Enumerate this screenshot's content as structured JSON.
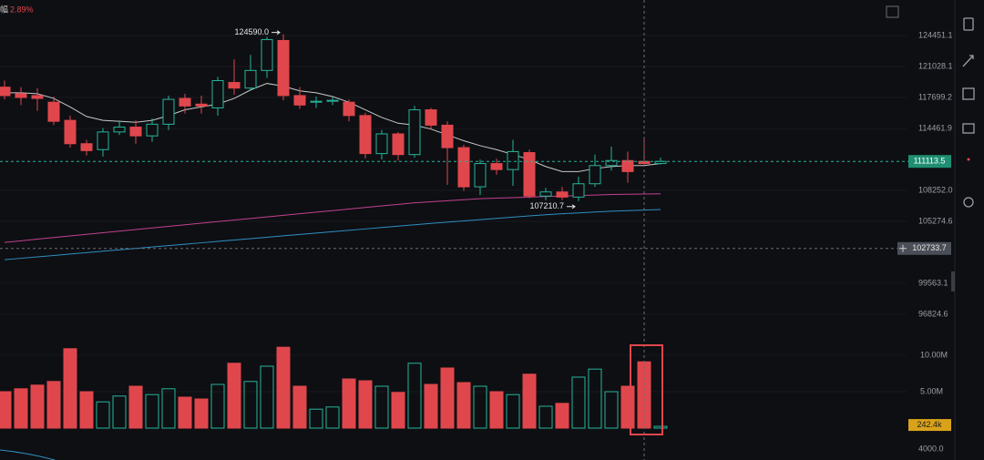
{
  "chart_data": {
    "type": "candlestick",
    "top_label": "幅",
    "change": "2.89%",
    "open": [
      118800,
      118100,
      117900,
      117200,
      115300,
      112900,
      112300,
      114100,
      114600,
      113700,
      114900,
      117600,
      117000,
      116600,
      119300,
      118700,
      120600,
      123900,
      117900,
      117200,
      117300,
      117200,
      115800,
      111900,
      113900,
      111800,
      116400,
      114800,
      112500,
      108600,
      110900,
      110300,
      112000,
      107700,
      108100,
      107600,
      108900,
      110700,
      111200,
      111113,
      110900
    ],
    "high": [
      119500,
      118800,
      118700,
      117800,
      115800,
      113300,
      114500,
      115300,
      115300,
      115500,
      117900,
      118100,
      117900,
      119900,
      121800,
      122300,
      124300,
      124590,
      118800,
      117800,
      117800,
      117500,
      116100,
      114300,
      114100,
      116800,
      116600,
      115200,
      112800,
      111300,
      111400,
      113300,
      112300,
      108500,
      108600,
      109600,
      111800,
      112600,
      112100,
      113500,
      111500
    ],
    "low": [
      117500,
      116900,
      116300,
      114800,
      112500,
      111700,
      111600,
      113800,
      112900,
      113100,
      114300,
      116000,
      116000,
      115800,
      118000,
      118400,
      119800,
      117400,
      116500,
      116600,
      116900,
      115200,
      111400,
      111300,
      111200,
      111500,
      114400,
      108800,
      108200,
      107800,
      109800,
      108700,
      107500,
      107300,
      107300,
      107210.7,
      108600,
      110200,
      109000,
      110600,
      110800
    ],
    "close": [
      117900,
      117700,
      117600,
      115200,
      112900,
      112200,
      114100,
      114600,
      113700,
      114900,
      117500,
      116800,
      116800,
      119500,
      118700,
      120600,
      124000,
      117900,
      116900,
      117300,
      117400,
      115800,
      111900,
      113900,
      111800,
      116400,
      114800,
      112500,
      108600,
      110900,
      110300,
      112100,
      107700,
      108100,
      107600,
      108900,
      110700,
      111200,
      110100,
      110900,
      111113.5
    ],
    "volume": [
      5000000,
      5400000,
      5900000,
      6400000,
      10900000,
      5000000,
      3600000,
      4400000,
      5750000,
      4600000,
      5400000,
      4250000,
      4000000,
      6000000,
      8900000,
      6400000,
      8500000,
      11100000,
      5750000,
      2600000,
      2900000,
      6750000,
      6500000,
      5750000,
      4900000,
      8900000,
      6000000,
      8250000,
      6250000,
      5750000,
      5000000,
      4600000,
      7400000,
      3000000,
      3400000,
      7000000,
      8100000,
      5000000,
      5750000,
      9100000,
      242400
    ],
    "volume_labels": [
      null,
      null,
      null,
      null,
      null,
      null,
      null,
      null,
      null,
      null,
      null,
      null,
      null,
      null,
      null,
      null,
      null,
      null,
      null,
      null,
      null,
      null,
      null,
      null,
      null,
      null,
      null,
      null,
      null,
      null,
      null,
      null,
      null,
      null,
      null,
      null,
      null,
      null,
      null,
      null,
      "242.4k"
    ],
    "moving_averages": [
      {
        "color": "#c8c8c8",
        "values": [
          118200,
          118200,
          118100,
          117600,
          116700,
          115700,
          115300,
          115200,
          115100,
          115300,
          115800,
          116400,
          116700,
          117000,
          117600,
          118500,
          119200,
          118900,
          118400,
          118200,
          117800,
          117200,
          116400,
          115600,
          115000,
          114800,
          114400,
          113800,
          113200,
          112700,
          112300,
          111800,
          111300,
          110600,
          110100,
          110100,
          110400,
          110600,
          110700,
          110700,
          110900
        ]
      },
      {
        "color": "#c2418f",
        "values": [
          103300,
          103450,
          103600,
          103750,
          103900,
          104050,
          104200,
          104350,
          104500,
          104650,
          104800,
          104950,
          105100,
          105250,
          105400,
          105550,
          105700,
          105850,
          106000,
          106150,
          106300,
          106450,
          106600,
          106750,
          106900,
          107050,
          107150,
          107250,
          107350,
          107450,
          107500,
          107550,
          107600,
          107650,
          107700,
          107750,
          107800,
          107850,
          107880,
          107900,
          107920
        ]
      },
      {
        "color": "#2f8fc2",
        "values": [
          101700,
          101830,
          101960,
          102090,
          102220,
          102350,
          102480,
          102610,
          102740,
          102870,
          103000,
          103130,
          103260,
          103390,
          103520,
          103650,
          103780,
          103910,
          104040,
          104170,
          104300,
          104430,
          104560,
          104690,
          104820,
          104950,
          105080,
          105200,
          105320,
          105440,
          105560,
          105680,
          105800,
          105900,
          106000,
          106080,
          106160,
          106240,
          106300,
          106350,
          106400
        ]
      }
    ],
    "ylim": [
      95641,
      127973
    ],
    "log_scale": true,
    "yticks": [
      124451.1,
      121028.1,
      117699.2,
      114461.9,
      {
        "value": 108252,
        "label": "108252.0"
      },
      105274.6,
      99563.1,
      96824.6
    ],
    "volume_ylim": [
      0,
      12500000
    ],
    "volume_ticks": [
      {
        "value": 10000000,
        "label": "10.00M"
      },
      {
        "value": 5000000,
        "label": "5.00M"
      }
    ],
    "lower_panel_tick": "4000.0",
    "last_price": 111113.5,
    "crosshair_price": 102733.7,
    "high_label": {
      "value": 124590,
      "label": "124590.0"
    },
    "low_label": 107210.7,
    "up_color": "#26b59a",
    "down_color": "#e0474c",
    "grid": true
  }
}
